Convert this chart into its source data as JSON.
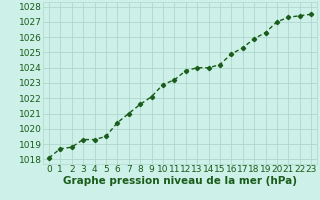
{
  "x": [
    0,
    1,
    2,
    3,
    4,
    5,
    6,
    7,
    8,
    9,
    10,
    11,
    12,
    13,
    14,
    15,
    16,
    17,
    18,
    19,
    20,
    21,
    22,
    23
  ],
  "y": [
    1018.1,
    1018.7,
    1018.8,
    1019.3,
    1019.3,
    1019.5,
    1020.4,
    1021.0,
    1021.6,
    1022.1,
    1022.9,
    1023.2,
    1023.8,
    1024.0,
    1024.0,
    1024.2,
    1024.9,
    1025.3,
    1025.9,
    1026.3,
    1027.0,
    1027.3,
    1027.4,
    1027.5
  ],
  "line_color": "#1a5c1a",
  "marker": "D",
  "marker_size": 2.2,
  "line_width": 1.0,
  "bg_color": "#cdf0e8",
  "grid_color": "#aed8ce",
  "xlabel": "Graphe pression niveau de la mer (hPa)",
  "xlabel_fontsize": 7.5,
  "xlabel_fontweight": "bold",
  "tick_label_fontsize": 6.5,
  "ylim": [
    1017.7,
    1028.3
  ],
  "yticks": [
    1018,
    1019,
    1020,
    1021,
    1022,
    1023,
    1024,
    1025,
    1026,
    1027,
    1028
  ],
  "xlim": [
    -0.5,
    23.5
  ],
  "xticks": [
    0,
    1,
    2,
    3,
    4,
    5,
    6,
    7,
    8,
    9,
    10,
    11,
    12,
    13,
    14,
    15,
    16,
    17,
    18,
    19,
    20,
    21,
    22,
    23
  ]
}
